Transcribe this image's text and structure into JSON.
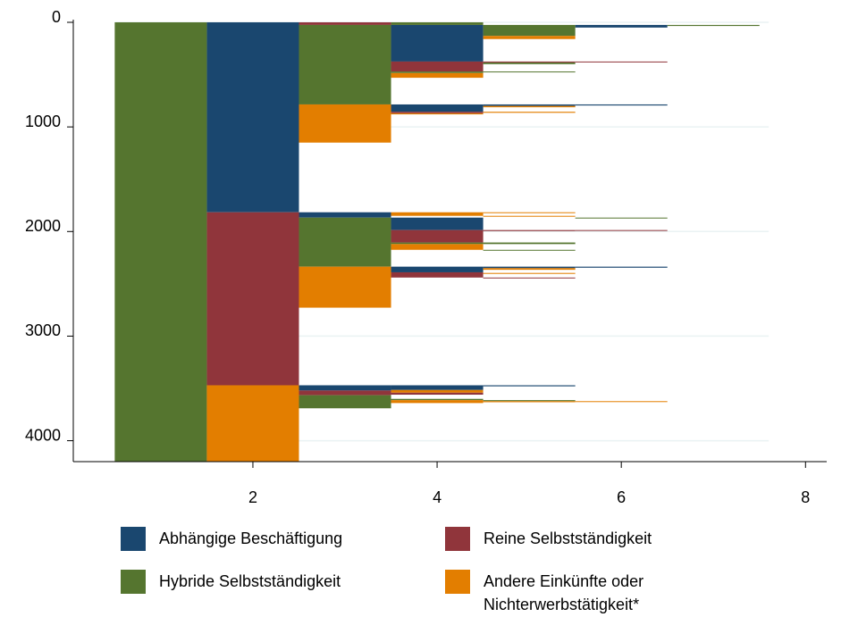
{
  "chart_data": {
    "type": "sequence",
    "xlim": [
      0.05,
      8.23
    ],
    "xticks": [
      2,
      4,
      6,
      8
    ],
    "ylim": [
      0,
      4200
    ],
    "yticks": [
      0,
      1000,
      2000,
      3000,
      4000
    ],
    "y_inverted": true,
    "grid": true,
    "series": [
      {
        "name": "Abhängige Beschäftigung",
        "color": "#1a476f",
        "segments": [
          [
            2,
            0,
            1816
          ],
          [
            3,
            1816,
            1867
          ],
          [
            3,
            3470,
            3520
          ],
          [
            4,
            25,
            375
          ],
          [
            4,
            785,
            855
          ],
          [
            4,
            1867,
            1986
          ],
          [
            4,
            2336,
            2390
          ],
          [
            4,
            3470,
            3515
          ],
          [
            5,
            785,
            800
          ],
          [
            5,
            2336,
            2350
          ],
          [
            5,
            3470,
            3480
          ],
          [
            6,
            25,
            50
          ],
          [
            6,
            785,
            795
          ],
          [
            6,
            2336,
            2346
          ]
        ]
      },
      {
        "name": "Reine Selbstständigkeit",
        "color": "#90353b",
        "segments": [
          [
            2,
            1816,
            3470
          ],
          [
            3,
            0,
            25
          ],
          [
            3,
            3520,
            3565
          ],
          [
            4,
            375,
            470
          ],
          [
            4,
            855,
            870
          ],
          [
            4,
            1986,
            2105
          ],
          [
            4,
            2390,
            2440
          ],
          [
            4,
            3540,
            3560
          ],
          [
            5,
            375,
            385
          ],
          [
            5,
            1986,
            1996
          ],
          [
            5,
            2440,
            2448
          ],
          [
            6,
            375,
            383
          ],
          [
            6,
            1986,
            1994
          ]
        ]
      },
      {
        "name": "Hybride Selbstständigkeit",
        "color": "#55752f",
        "segments": [
          [
            1,
            0,
            4200
          ],
          [
            3,
            25,
            785
          ],
          [
            3,
            1867,
            2336
          ],
          [
            3,
            3565,
            3690
          ],
          [
            4,
            0,
            25
          ],
          [
            4,
            470,
            485
          ],
          [
            4,
            2105,
            2120
          ],
          [
            4,
            3600,
            3612
          ],
          [
            5,
            25,
            130
          ],
          [
            5,
            385,
            400
          ],
          [
            5,
            470,
            478
          ],
          [
            5,
            2105,
            2120
          ],
          [
            5,
            2175,
            2183
          ],
          [
            5,
            3612,
            3622
          ],
          [
            6,
            1867,
            1875
          ],
          [
            7,
            25,
            35
          ]
        ]
      },
      {
        "name": "Andere Einkünfte oder Nichterwerbstätigkeit*",
        "color": "#e37e00",
        "segments": [
          [
            2,
            3470,
            4200
          ],
          [
            3,
            785,
            1150
          ],
          [
            3,
            2336,
            2728
          ],
          [
            4,
            485,
            530
          ],
          [
            4,
            870,
            880
          ],
          [
            4,
            1816,
            1850
          ],
          [
            4,
            2120,
            2175
          ],
          [
            4,
            3515,
            3540
          ],
          [
            4,
            3612,
            3640
          ],
          [
            5,
            130,
            160
          ],
          [
            5,
            800,
            812
          ],
          [
            5,
            855,
            865
          ],
          [
            5,
            1816,
            1822
          ],
          [
            5,
            1850,
            1858
          ],
          [
            5,
            2350,
            2366
          ],
          [
            5,
            2396,
            2405
          ],
          [
            5,
            3622,
            3632
          ],
          [
            6,
            3622,
            3628
          ]
        ]
      }
    ]
  }
}
